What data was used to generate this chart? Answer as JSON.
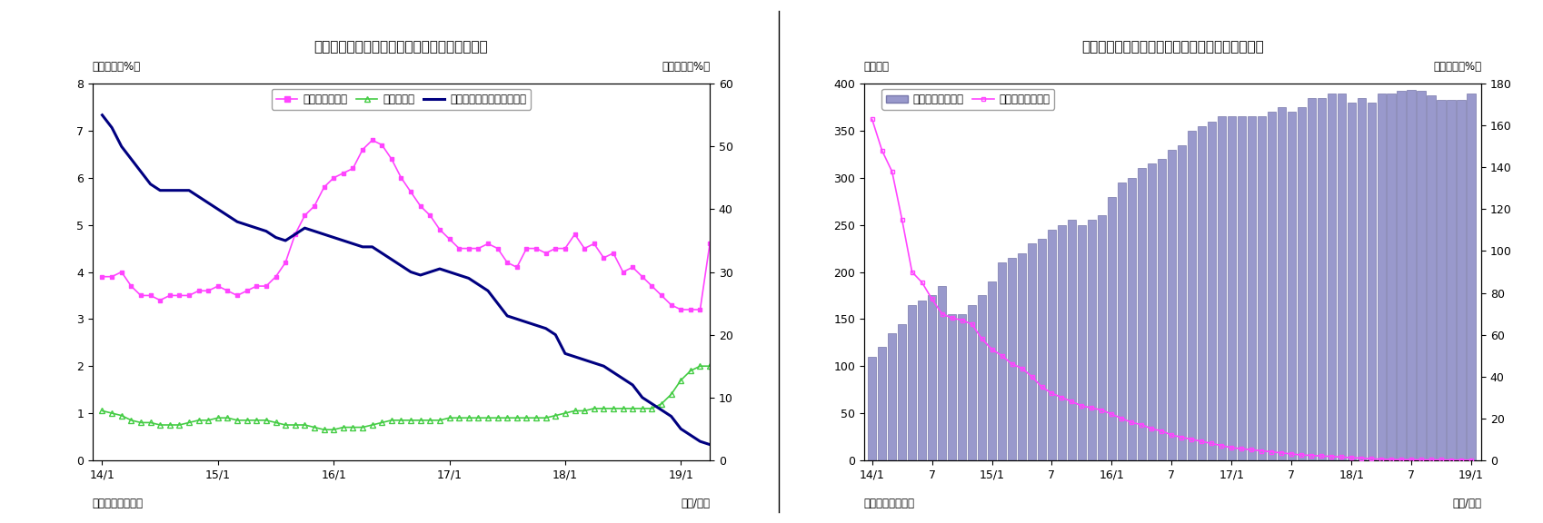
{
  "chart5": {
    "title": "（図表５）　マネタリーベース伸び率（平残）",
    "ylabel_left": "（前年比、%）",
    "ylabel_right": "（前年比、%）",
    "xlabel": "（年/月）",
    "source": "（資料）日本銀行",
    "ylim_left": [
      0,
      8
    ],
    "ylim_right": [
      0,
      60
    ],
    "yticks_left": [
      0,
      1,
      2,
      3,
      4,
      5,
      6,
      7,
      8
    ],
    "yticks_right": [
      0,
      10,
      20,
      30,
      40,
      50,
      60
    ],
    "xtick_positions": [
      0,
      12,
      24,
      36,
      48,
      60
    ],
    "xtick_labels": [
      "14/1",
      "15/1",
      "16/1",
      "17/1",
      "18/1",
      "19/1"
    ],
    "legend": [
      "日銀券発行残高",
      "貨幣流通高",
      "マネタリーベース（右軸）"
    ],
    "nissin_color": "#FF44FF",
    "kahei_color": "#44CC44",
    "monetary_color": "#000080",
    "nissin_data": [
      3.9,
      3.9,
      4.0,
      3.7,
      3.5,
      3.5,
      3.4,
      3.5,
      3.5,
      3.5,
      3.6,
      3.6,
      3.7,
      3.6,
      3.5,
      3.6,
      3.7,
      3.7,
      3.9,
      4.2,
      4.8,
      5.2,
      5.4,
      5.8,
      6.0,
      6.1,
      6.2,
      6.6,
      6.8,
      6.7,
      6.4,
      6.0,
      5.7,
      5.4,
      5.2,
      4.9,
      4.7,
      4.5,
      4.5,
      4.5,
      4.6,
      4.5,
      4.2,
      4.1,
      4.5,
      4.5,
      4.4,
      4.5,
      4.5,
      4.8,
      4.5,
      4.6,
      4.3,
      4.4,
      4.0,
      4.1,
      3.9,
      3.7,
      3.5,
      3.3,
      3.2,
      3.2,
      3.2,
      4.6
    ],
    "kahei_data": [
      1.05,
      1.0,
      0.95,
      0.85,
      0.8,
      0.8,
      0.75,
      0.75,
      0.75,
      0.8,
      0.85,
      0.85,
      0.9,
      0.9,
      0.85,
      0.85,
      0.85,
      0.85,
      0.8,
      0.75,
      0.75,
      0.75,
      0.7,
      0.65,
      0.65,
      0.7,
      0.7,
      0.7,
      0.75,
      0.8,
      0.85,
      0.85,
      0.85,
      0.85,
      0.85,
      0.85,
      0.9,
      0.9,
      0.9,
      0.9,
      0.9,
      0.9,
      0.9,
      0.9,
      0.9,
      0.9,
      0.9,
      0.95,
      1.0,
      1.05,
      1.05,
      1.1,
      1.1,
      1.1,
      1.1,
      1.1,
      1.1,
      1.1,
      1.2,
      1.4,
      1.7,
      1.9,
      2.0,
      2.0
    ],
    "monetary_data": [
      55,
      53,
      50,
      48,
      46,
      44,
      43,
      43,
      43,
      43,
      42,
      41,
      40,
      39,
      38,
      37.5,
      37,
      36.5,
      35.5,
      35,
      36,
      37,
      36.5,
      36,
      35.5,
      35,
      34.5,
      34,
      34,
      33,
      32,
      31,
      30,
      29.5,
      30,
      30.5,
      30,
      29.5,
      29,
      28,
      27,
      25,
      23,
      22.5,
      22,
      21.5,
      21,
      20,
      17,
      16.5,
      16,
      15.5,
      15,
      14,
      13,
      12,
      10,
      9,
      8,
      7,
      5,
      4,
      3,
      2.5
    ]
  },
  "chart6": {
    "title": "（図表６）　日銀当座預金残高（平残）と伸び率",
    "ylabel_left": "（兆円）",
    "ylabel_right": "（前年比、%）",
    "xlabel": "（年/月）",
    "source": "（資料）日本銀行",
    "ylim_left": [
      0,
      400
    ],
    "ylim_right": [
      0,
      180
    ],
    "yticks_left": [
      0,
      50,
      100,
      150,
      200,
      250,
      300,
      350,
      400
    ],
    "yticks_right": [
      0,
      20,
      40,
      60,
      80,
      100,
      120,
      140,
      160,
      180
    ],
    "xtick_positions": [
      0,
      6,
      12,
      18,
      24,
      30,
      36,
      42,
      48,
      54,
      60
    ],
    "xtick_labels": [
      "14/1",
      "7",
      "15/1",
      "7",
      "16/1",
      "7",
      "17/1",
      "7",
      "18/1",
      "7",
      "19/1"
    ],
    "legend": [
      "日銀当座預金残高",
      "同伸び率（右軸）"
    ],
    "bar_color": "#9999CC",
    "bar_edge_color": "#7777AA",
    "line_color": "#FF44FF",
    "balance_data": [
      110,
      120,
      135,
      145,
      165,
      170,
      175,
      185,
      155,
      155,
      165,
      175,
      190,
      210,
      215,
      220,
      230,
      235,
      245,
      250,
      255,
      250,
      255,
      260,
      280,
      295,
      300,
      310,
      315,
      320,
      330,
      335,
      350,
      355,
      360,
      365,
      365,
      365,
      365,
      365,
      370,
      375,
      370,
      375,
      385,
      385,
      390,
      390,
      380,
      385,
      380,
      390,
      390,
      392,
      393,
      392,
      388,
      383,
      383,
      383,
      390
    ],
    "growth_data_x": [
      0,
      1,
      2,
      3,
      4,
      5,
      6,
      7,
      8,
      9,
      10,
      11,
      12,
      13,
      14,
      15,
      16,
      17,
      18,
      19,
      20,
      21,
      22,
      23,
      24,
      25,
      26,
      27,
      28,
      29,
      30,
      31,
      32,
      33,
      34,
      35,
      36,
      37,
      38,
      39,
      40,
      41,
      42,
      43,
      44,
      45,
      46,
      47,
      48,
      49,
      50,
      51,
      52,
      53,
      54,
      55,
      56,
      57,
      58,
      59,
      60
    ],
    "growth_data_y": [
      163,
      148,
      138,
      115,
      90,
      85,
      77,
      70,
      68,
      67,
      65,
      58,
      53,
      50,
      46,
      44,
      40,
      35,
      32,
      30,
      28,
      26,
      25,
      24,
      22,
      20,
      18,
      17,
      15,
      14,
      12,
      11,
      10,
      9,
      8,
      7,
      6,
      5.5,
      5,
      4.5,
      4,
      3.5,
      3,
      2.5,
      2.3,
      2,
      1.8,
      1.5,
      1.2,
      1.0,
      0.7,
      0.5,
      0.4,
      0.3,
      0.3,
      0.2,
      0.2,
      0.2,
      0.1,
      0.1,
      0.1
    ]
  }
}
